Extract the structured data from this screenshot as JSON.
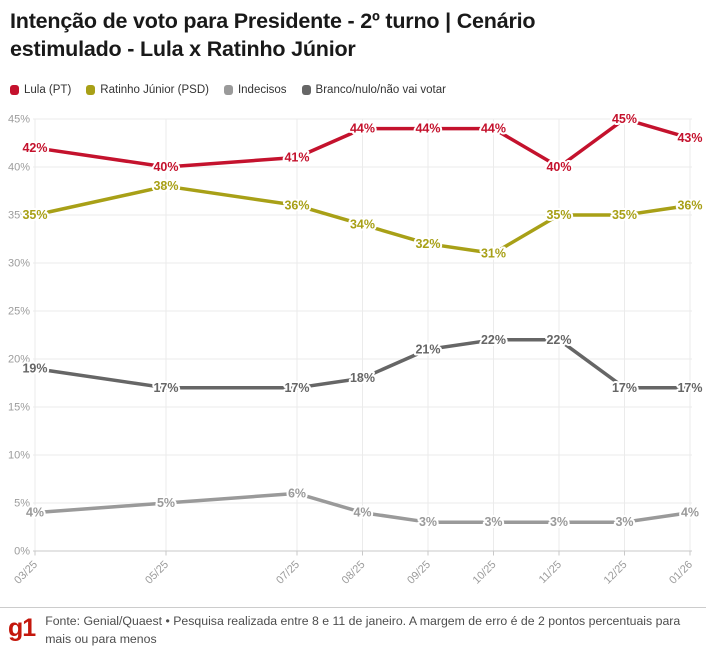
{
  "title": "Intenção de voto para Presidente - 2º turno | Cenário estimulado - Lula x Ratinho Júnior",
  "footer": {
    "logo": "g1",
    "logo_color": "#c4170c",
    "text": "Fonte: Genial/Quaest • Pesquisa realizada entre 8 e 11 de janeiro. A margem de erro é de 2 pontos percentuais para mais ou para menos"
  },
  "chart_data": {
    "type": "line",
    "title": "Intenção de voto para Presidente - 2º turno | Cenário estimulado - Lula x Ratinho Júnior",
    "categories": [
      "03/25",
      "05/25",
      "07/25",
      "08/25",
      "09/25",
      "10/25",
      "11/25",
      "12/25",
      "01/26"
    ],
    "x_month_offsets": [
      0,
      2,
      4,
      5,
      6,
      7,
      8,
      9,
      10
    ],
    "series": [
      {
        "name": "Lula (PT)",
        "color": "#c4122d",
        "values": [
          42,
          40,
          41,
          44,
          44,
          44,
          40,
          45,
          43
        ]
      },
      {
        "name": "Ratinho Júnior (PSD)",
        "color": "#a8a017",
        "values": [
          35,
          38,
          36,
          34,
          32,
          31,
          35,
          35,
          36
        ]
      },
      {
        "name": "Indecisos",
        "color": "#9a9a9a",
        "values": [
          4,
          5,
          6,
          4,
          3,
          3,
          3,
          3,
          4
        ]
      },
      {
        "name": "Branco/nulo/não vai votar",
        "color": "#666666",
        "values": [
          19,
          17,
          17,
          18,
          21,
          22,
          22,
          17,
          17
        ]
      }
    ],
    "ylim": [
      0,
      45
    ],
    "y_tick_labels": [
      "0%",
      "5%",
      "10%",
      "15%",
      "20%",
      "25%",
      "30%",
      "35%",
      "40%",
      "45%"
    ],
    "data_label_suffix": "%",
    "grid": true,
    "legend_position": "top",
    "colors": {
      "grid_line": "#ebebeb",
      "axis_line": "#c9c9c9",
      "axis_text": "#9c9c9c",
      "label_halo": "#ffffff"
    }
  }
}
